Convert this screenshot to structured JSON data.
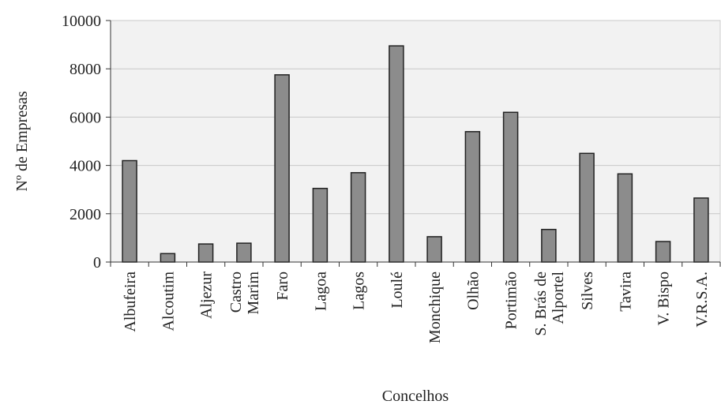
{
  "colors": {
    "bar_fill": "#8c8c8c",
    "bar_stroke": "#222222",
    "plot_bg": "#f2f2f2",
    "grid": "#c8c8c8",
    "axis": "#333333"
  },
  "chart_data": {
    "type": "bar",
    "title": "",
    "xlabel": "Concelhos",
    "ylabel": "Nº de Empresas",
    "ylim": [
      0,
      10000
    ],
    "yticks": [
      0,
      2000,
      4000,
      6000,
      8000,
      10000
    ],
    "ytick_labels": [
      "0",
      "2000",
      "4000",
      "6000",
      "8000",
      "10000"
    ],
    "grid": true,
    "legend": "none",
    "categories": [
      "Albufeira",
      "Alcoutim",
      "Aljezur",
      "Castro Marim",
      "Faro",
      "Lagoa",
      "Lagos",
      "Loulé",
      "Monchique",
      "Olhão",
      "Portimão",
      "S. Brás de Alportel",
      "Silves",
      "Tavira",
      "V. Bispo",
      "V.R.S.A."
    ],
    "category_label_lines": [
      [
        "Albufeira"
      ],
      [
        "Alcoutim"
      ],
      [
        "Aljezur"
      ],
      [
        "Castro",
        "Marim"
      ],
      [
        "Faro"
      ],
      [
        "Lagoa"
      ],
      [
        "Lagos"
      ],
      [
        "Loulé"
      ],
      [
        "Monchique"
      ],
      [
        "Olhão"
      ],
      [
        "Portimão"
      ],
      [
        "S. Brás de",
        "Alportel"
      ],
      [
        "Silves"
      ],
      [
        "Tavira"
      ],
      [
        "V. Bispo"
      ],
      [
        "V.R.S.A."
      ]
    ],
    "values": [
      4200,
      350,
      750,
      780,
      7750,
      3050,
      3700,
      8950,
      1050,
      5400,
      6200,
      1350,
      4500,
      3650,
      850,
      2650
    ]
  }
}
